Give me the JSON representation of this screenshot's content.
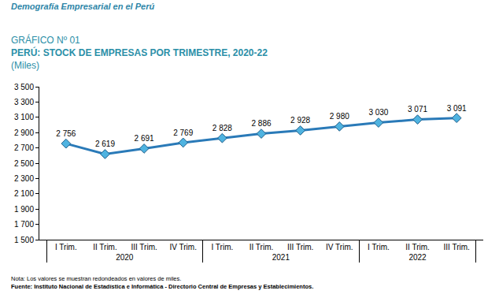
{
  "header": "Demografía Empresarial en el Perú",
  "chart_data": {
    "type": "line",
    "chart_label": "GRÁFICO Nº 01",
    "title": "PERÚ: STOCK DE EMPRESAS POR TRIMESTRE, 2020-22",
    "subtitle": "(Miles)",
    "categories": [
      "I Trim.",
      "II Trim.",
      "III Trim.",
      "IV Trim.",
      "I Trim.",
      "II Trim.",
      "III Trim.",
      "IV Trim.",
      "I Trim.",
      "II Trim.",
      "III Trim."
    ],
    "groups": [
      "2020",
      "2020",
      "2020",
      "2020",
      "2021",
      "2021",
      "2021",
      "2021",
      "2022",
      "2022",
      "2022"
    ],
    "values": [
      2756,
      2619,
      2691,
      2769,
      2828,
      2886,
      2928,
      2980,
      3030,
      3071,
      3091
    ],
    "value_labels": [
      "2 756",
      "2 619",
      "2 691",
      "2 769",
      "2 828",
      "2 886",
      "2 928",
      "2 980",
      "3 030",
      "3 071",
      "3 091"
    ],
    "data_labels": true,
    "color": "#2a7ab8",
    "marker": "diamond",
    "ylim": [
      1500,
      3500
    ],
    "yticks": [
      {
        "value": 1500,
        "label": "1 500"
      },
      {
        "value": 1700,
        "label": "1 700"
      },
      {
        "value": 1900,
        "label": "1 900"
      },
      {
        "value": 2100,
        "label": "2 100"
      },
      {
        "value": 2300,
        "label": "2 300"
      },
      {
        "value": 2500,
        "label": "2 500"
      },
      {
        "value": 2700,
        "label": "2 700"
      },
      {
        "value": 2900,
        "label": "2 900"
      },
      {
        "value": 3100,
        "label": "3 100"
      },
      {
        "value": 3300,
        "label": "3 300"
      },
      {
        "value": 3500,
        "label": "3 500"
      }
    ],
    "grid": false,
    "notes": [
      "Nota: Los valores se muestran redondeados en valores de miles.",
      "Fuente: Instituto Nacional de Estadística e Informática - Directorio Central de Empresas y Establecimientos."
    ]
  }
}
